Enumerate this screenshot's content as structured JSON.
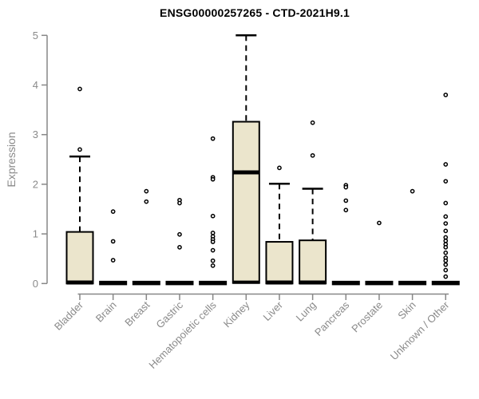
{
  "chart_data": {
    "type": "boxplot",
    "title": "ENSG00000257265 - CTD-2021H9.1",
    "xlabel": "",
    "ylabel": "Expression",
    "ylim": [
      0,
      5
    ],
    "yticks": [
      0,
      1,
      2,
      3,
      4,
      5
    ],
    "grid": "off",
    "legend": "none",
    "categories": [
      "Bladder",
      "Brain",
      "Breast",
      "Gastric",
      "Hematopoietic cells",
      "Kidney",
      "Liver",
      "Lung",
      "Pancreas",
      "Prostate",
      "Skin",
      "Unknown / Other"
    ],
    "series": [
      {
        "name": "Bladder",
        "q1": 0,
        "median": 0.02,
        "q3": 1.04,
        "whisker_low": 0,
        "whisker_high": 2.56,
        "outliers": [
          3.92,
          2.7
        ]
      },
      {
        "name": "Brain",
        "q1": 0,
        "median": 0.01,
        "q3": 0.02,
        "whisker_low": 0,
        "whisker_high": 0.02,
        "outliers": [
          1.45,
          0.85,
          0.47
        ]
      },
      {
        "name": "Breast",
        "q1": 0,
        "median": 0.01,
        "q3": 0.02,
        "whisker_low": 0,
        "whisker_high": 0.02,
        "outliers": [
          1.86,
          1.65
        ]
      },
      {
        "name": "Gastric",
        "q1": 0,
        "median": 0.01,
        "q3": 0.02,
        "whisker_low": 0,
        "whisker_high": 0.02,
        "outliers": [
          1.68,
          1.62,
          0.99,
          0.73
        ]
      },
      {
        "name": "Hematopoietic cells",
        "q1": 0,
        "median": 0.01,
        "q3": 0.02,
        "whisker_low": 0,
        "whisker_high": 0.02,
        "outliers": [
          2.92,
          2.14,
          2.1,
          1.36,
          1.02,
          0.95,
          0.89,
          0.84,
          0.67,
          0.46,
          0.36
        ]
      },
      {
        "name": "Kidney",
        "q1": 0.01,
        "median": 2.24,
        "q3": 3.26,
        "whisker_low": 0,
        "whisker_high": 5.0,
        "outliers": []
      },
      {
        "name": "Liver",
        "q1": 0,
        "median": 0.02,
        "q3": 0.84,
        "whisker_low": 0,
        "whisker_high": 2.01,
        "outliers": [
          2.33
        ]
      },
      {
        "name": "Lung",
        "q1": 0,
        "median": 0.02,
        "q3": 0.87,
        "whisker_low": 0,
        "whisker_high": 1.91,
        "outliers": [
          3.24,
          2.58
        ]
      },
      {
        "name": "Pancreas",
        "q1": 0,
        "median": 0.01,
        "q3": 0.02,
        "whisker_low": 0,
        "whisker_high": 0.02,
        "outliers": [
          1.98,
          1.94,
          1.67,
          1.48
        ]
      },
      {
        "name": "Prostate",
        "q1": 0,
        "median": 0.01,
        "q3": 0.02,
        "whisker_low": 0,
        "whisker_high": 0.02,
        "outliers": [
          1.22
        ]
      },
      {
        "name": "Skin",
        "q1": 0,
        "median": 0.01,
        "q3": 0.02,
        "whisker_low": 0,
        "whisker_high": 0.02,
        "outliers": [
          1.86
        ]
      },
      {
        "name": "Unknown / Other",
        "q1": 0,
        "median": 0.01,
        "q3": 0.02,
        "whisker_low": 0,
        "whisker_high": 0.02,
        "outliers": [
          3.8,
          2.4,
          2.06,
          1.62,
          1.35,
          1.21,
          1.06,
          0.93,
          0.86,
          0.79,
          0.73,
          0.62,
          0.52,
          0.46,
          0.38,
          0.27,
          0.14
        ]
      }
    ],
    "colors": {
      "box_fill": "#EBE5CC",
      "box_border": "#000000",
      "median": "#000000",
      "whisker": "#000000",
      "outlier": "#000000",
      "axis": "#878787",
      "tick_label": "#8a8a8a",
      "title": "#000000",
      "background": "#ffffff"
    }
  }
}
